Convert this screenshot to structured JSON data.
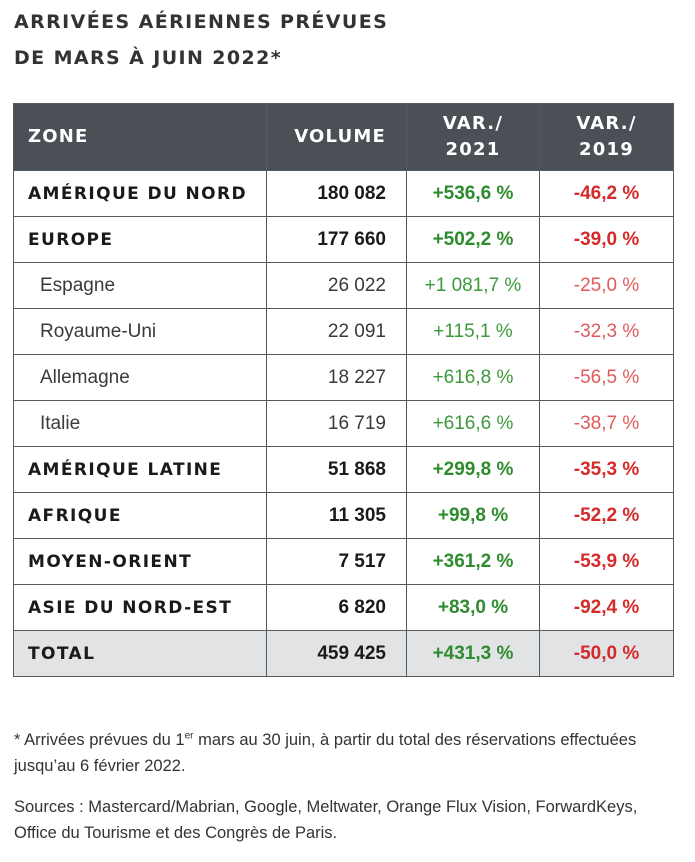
{
  "title": {
    "line1": "ARRIVÉES AÉRIENNES PRÉVUES",
    "line2": "DE MARS À JUIN 2022*"
  },
  "table": {
    "headers": {
      "zone": "ZONE",
      "volume": "VOLUME",
      "var2021_line1": "VAR./",
      "var2021_line2": "2021",
      "var2019_line1": "VAR./",
      "var2019_line2": "2019"
    },
    "rows": [
      {
        "zone": "AMÉRIQUE DU NORD",
        "volume": "180 082",
        "var2021": "+536,6 %",
        "var2019": "-46,2 %",
        "type": "major"
      },
      {
        "zone": "EUROPE",
        "volume": "177 660",
        "var2021": "+502,2 %",
        "var2019": "-39,0 %",
        "type": "major"
      },
      {
        "zone": "Espagne",
        "volume": "26 022",
        "var2021": "+1 081,7 %",
        "var2019": "-25,0 %",
        "type": "sub"
      },
      {
        "zone": "Royaume-Uni",
        "volume": "22 091",
        "var2021": "+115,1 %",
        "var2019": "-32,3 %",
        "type": "sub"
      },
      {
        "zone": "Allemagne",
        "volume": "18 227",
        "var2021": "+616,8 %",
        "var2019": "-56,5 %",
        "type": "sub"
      },
      {
        "zone": "Italie",
        "volume": "16 719",
        "var2021": "+616,6 %",
        "var2019": "-38,7 %",
        "type": "sub"
      },
      {
        "zone": "AMÉRIQUE LATINE",
        "volume": "51 868",
        "var2021": "+299,8 %",
        "var2019": "-35,3 %",
        "type": "major"
      },
      {
        "zone": "AFRIQUE",
        "volume": "11 305",
        "var2021": "+99,8 %",
        "var2019": "-52,2 %",
        "type": "major"
      },
      {
        "zone": "MOYEN-ORIENT",
        "volume": "7 517",
        "var2021": "+361,2 %",
        "var2019": "-53,9 %",
        "type": "major"
      },
      {
        "zone": "ASIE DU NORD-EST",
        "volume": "6 820",
        "var2021": "+83,0 %",
        "var2019": "-92,4 %",
        "type": "major"
      },
      {
        "zone": "TOTAL",
        "volume": "459 425",
        "var2021": "+431,3 %",
        "var2019": "-50,0 %",
        "type": "total"
      }
    ]
  },
  "footnote": {
    "prefix": "* Arrivées prévues du 1",
    "superscript": "er",
    "suffix": " mars au 30 juin, à partir du total des réservations effectuées jusqu’au 6 février 2022."
  },
  "sources": "Sources : Mastercard/Mabrian, Google, Meltwater, Orange Flux Vision, ForwardKeys, Office du Tourisme et des Congrès de Paris.",
  "colors": {
    "header_bg": "#4a5056",
    "positive": "#2e8b2e",
    "negative": "#d42a2a",
    "total_bg": "#e2e3e5"
  }
}
